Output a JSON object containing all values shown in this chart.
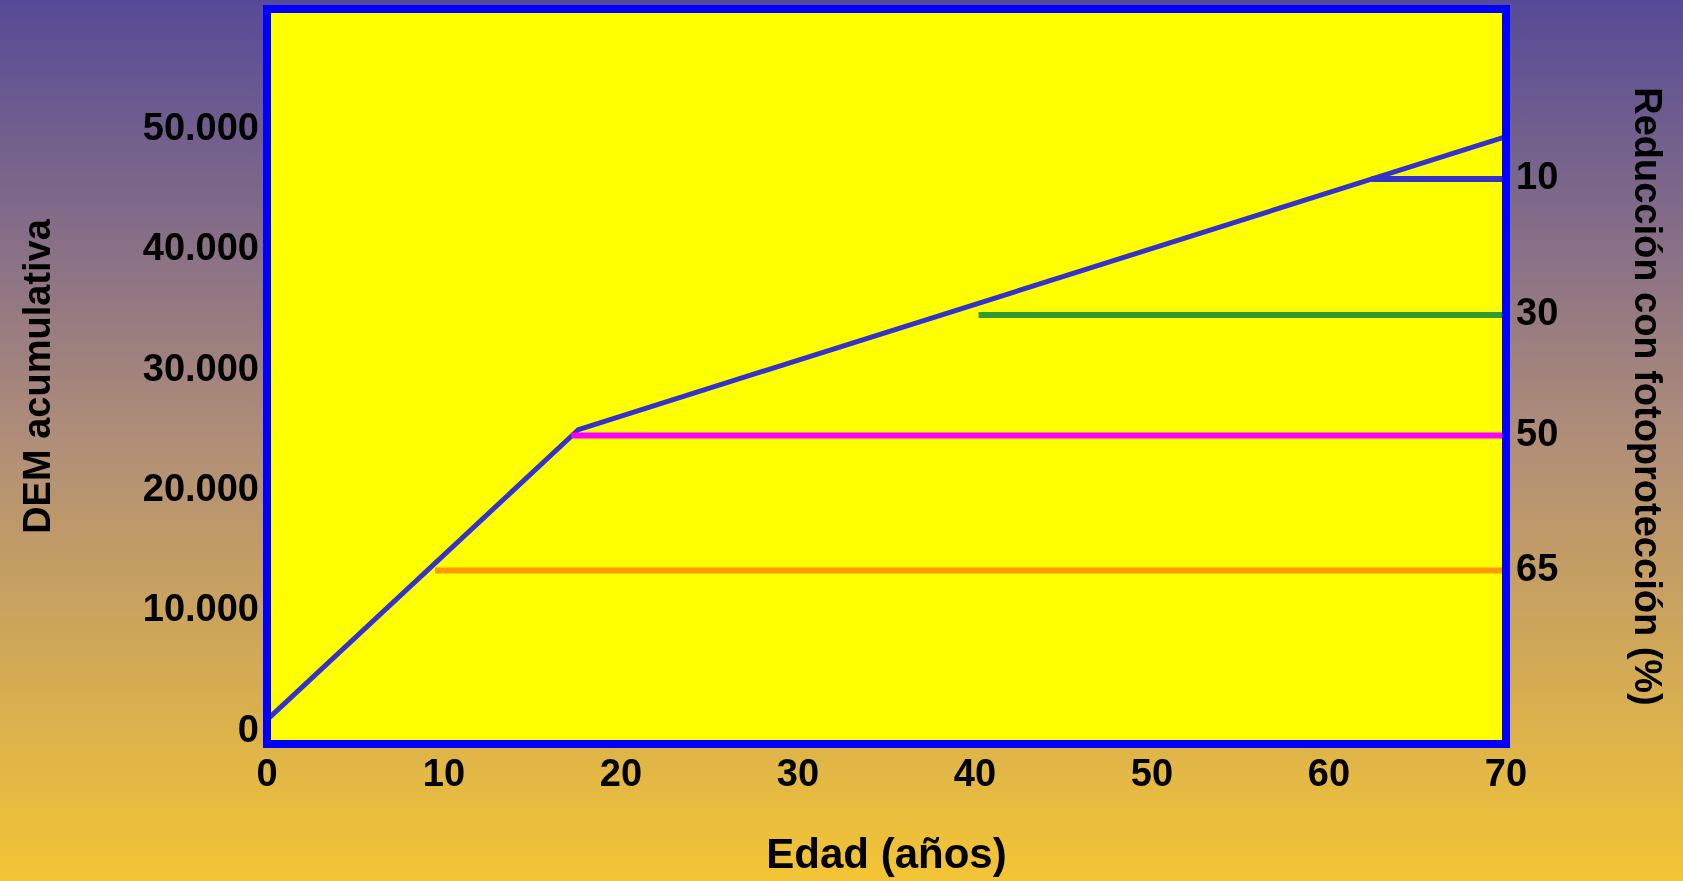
{
  "chart_data": {
    "type": "line",
    "xlabel": "Edad (años)",
    "ylabel": "DEM acumulativa",
    "y2label": "Reducción con fotoprotección (%)",
    "xlim": [
      0,
      70
    ],
    "xticks": [
      0,
      10,
      20,
      30,
      40,
      50,
      60,
      70
    ],
    "ylim": [
      -1000,
      60000
    ],
    "yticks": [
      {
        "value": 0,
        "label": "0"
      },
      {
        "value": 10000,
        "label": "10.000"
      },
      {
        "value": 20000,
        "label": "20.000"
      },
      {
        "value": 30000,
        "label": "30.000"
      },
      {
        "value": 40000,
        "label": "40.000"
      },
      {
        "value": 50000,
        "label": "50.000"
      }
    ],
    "series": [
      {
        "color": "#3333cc",
        "x": [
          0,
          17.6,
          70
        ],
        "values": [
          1000,
          25100,
          49400
        ]
      },
      {
        "name": "10",
        "color": "#3333cc",
        "x": [
          62.4,
          70
        ],
        "values": [
          45900,
          45900
        ]
      },
      {
        "name": "30",
        "color": "#339933",
        "x": [
          40.2,
          70
        ],
        "values": [
          34600,
          34600
        ]
      },
      {
        "name": "50",
        "color": "#ff00ff",
        "x": [
          17.2,
          70
        ],
        "values": [
          24600,
          24600
        ]
      },
      {
        "name": "65",
        "color": "#ff9900",
        "x": [
          9.5,
          70
        ],
        "values": [
          13400,
          13400
        ]
      }
    ],
    "grid": false,
    "marker": "none",
    "line_style": "solid"
  }
}
